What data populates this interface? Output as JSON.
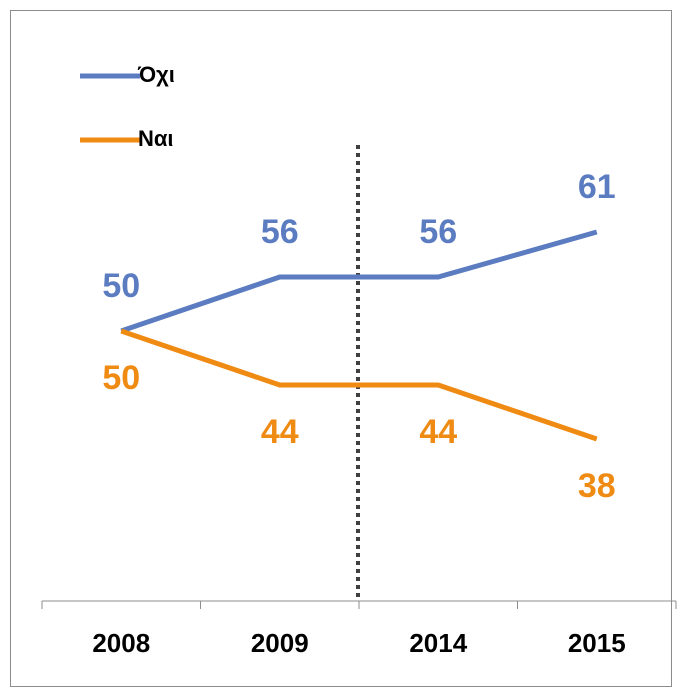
{
  "chart_data": {
    "type": "line",
    "categories": [
      "2008",
      "2009",
      "2014",
      "2015"
    ],
    "series": [
      {
        "name": "Όχι",
        "color": "#5b7cc0",
        "values": [
          50,
          56,
          56,
          61
        ]
      },
      {
        "name": "Ναι",
        "color": "#ef8a12",
        "values": [
          50,
          44,
          44,
          38
        ]
      }
    ],
    "ylim": [
      20,
      84
    ],
    "legend": "top-left"
  }
}
